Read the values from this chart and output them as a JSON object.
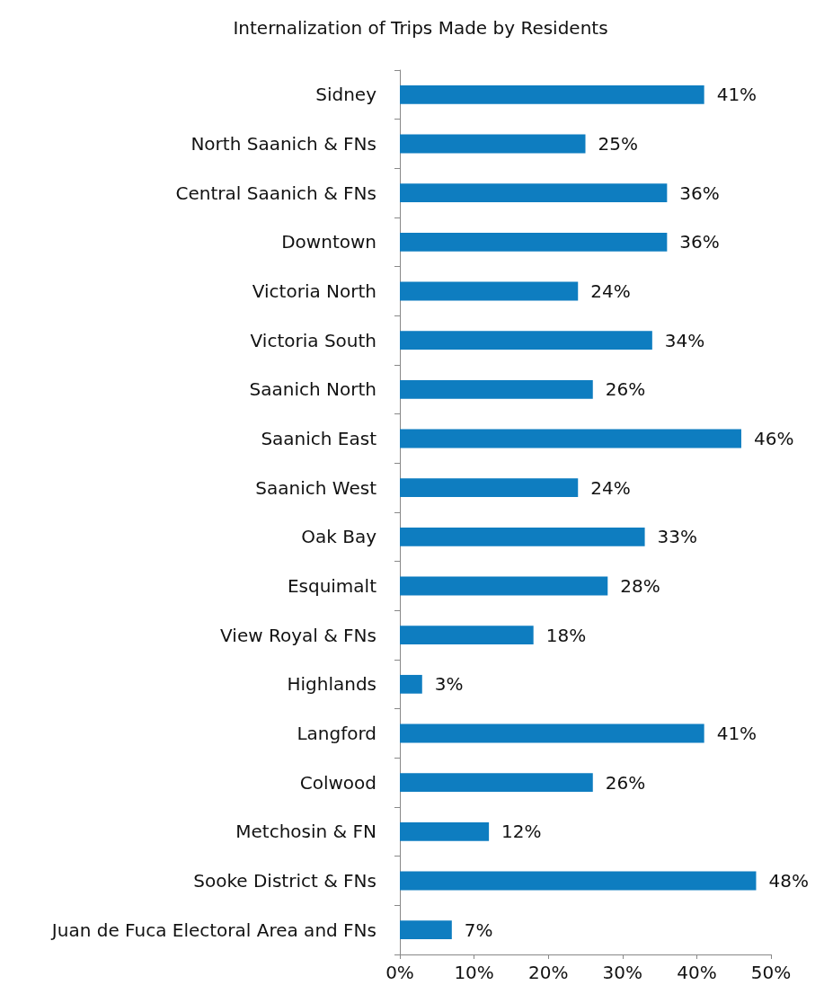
{
  "chart_data": {
    "type": "bar",
    "orientation": "horizontal",
    "title": "Internalization of Trips Made by Residents",
    "categories": [
      "Sidney",
      "North Saanich & FNs",
      "Central Saanich & FNs",
      "Downtown",
      "Victoria North",
      "Victoria South",
      "Saanich North",
      "Saanich East",
      "Saanich West",
      "Oak Bay",
      "Esquimalt",
      "View Royal & FNs",
      "Highlands",
      "Langford",
      "Colwood",
      "Metchosin & FN",
      "Sooke District & FNs",
      "Juan de Fuca Electoral Area and FNs"
    ],
    "values": [
      41,
      25,
      36,
      36,
      24,
      34,
      26,
      46,
      24,
      33,
      28,
      18,
      3,
      41,
      26,
      12,
      48,
      7
    ],
    "value_labels": [
      "41%",
      "25%",
      "36%",
      "36%",
      "24%",
      "34%",
      "26%",
      "46%",
      "24%",
      "33%",
      "28%",
      "18%",
      "3%",
      "41%",
      "26%",
      "12%",
      "48%",
      "7%"
    ],
    "color": "#0e7dc0",
    "xlim": [
      0,
      50
    ],
    "xticks": [
      {
        "value": 0,
        "label": "0%"
      },
      {
        "value": 10,
        "label": "10%"
      },
      {
        "value": 20,
        "label": "20%"
      },
      {
        "value": 30,
        "label": "30%"
      },
      {
        "value": 40,
        "label": "40%"
      },
      {
        "value": 50,
        "label": "50%"
      }
    ],
    "grid": false
  }
}
